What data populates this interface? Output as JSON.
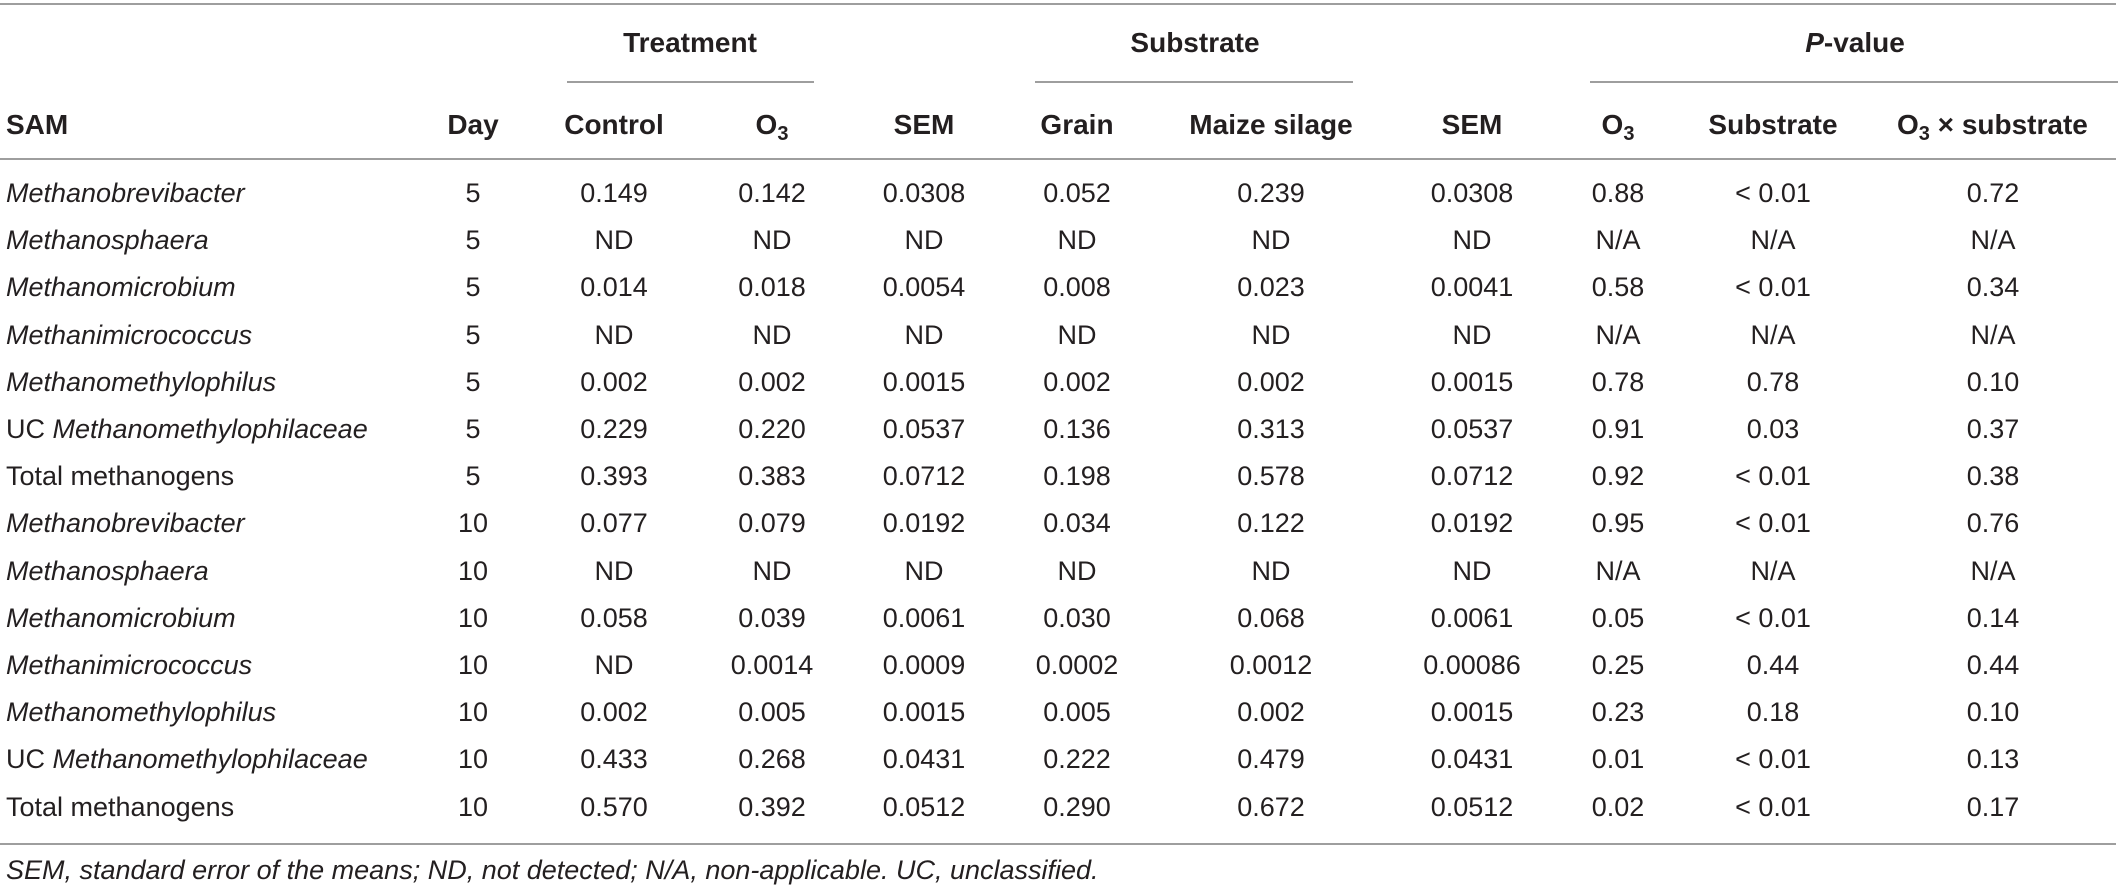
{
  "groups": {
    "treatment": "Treatment",
    "substrate": "Substrate",
    "pvalue_italic": "P",
    "pvalue_rest": "-value"
  },
  "headers": {
    "sam": "SAM",
    "day": "Day",
    "control": "Control",
    "o3_base": "O",
    "o3_sub": "3",
    "sem": "SEM",
    "grain": "Grain",
    "maize_silage": "Maize silage",
    "sem2": "SEM",
    "p_o3_base": "O",
    "p_o3_sub": "3",
    "substrate": "Substrate",
    "interaction_base": "O",
    "interaction_sub": "3",
    "interaction_rest": " × substrate"
  },
  "rows": [
    {
      "prefix": "",
      "name": "Methanobrevibacter",
      "day": "5",
      "control": "0.149",
      "o3": "0.142",
      "sem": "0.0308",
      "grain": "0.052",
      "maize": "0.239",
      "sem2": "0.0308",
      "p_o3": "0.88",
      "p_sub": "< 0.01",
      "p_int": "0.72"
    },
    {
      "prefix": "",
      "name": "Methanosphaera",
      "day": "5",
      "control": "ND",
      "o3": "ND",
      "sem": "ND",
      "grain": "ND",
      "maize": "ND",
      "sem2": "ND",
      "p_o3": "N/A",
      "p_sub": "N/A",
      "p_int": "N/A"
    },
    {
      "prefix": "",
      "name": "Methanomicrobium",
      "day": "5",
      "control": "0.014",
      "o3": "0.018",
      "sem": "0.0054",
      "grain": "0.008",
      "maize": "0.023",
      "sem2": "0.0041",
      "p_o3": "0.58",
      "p_sub": "< 0.01",
      "p_int": "0.34"
    },
    {
      "prefix": "",
      "name": "Methanimicrococcus",
      "day": "5",
      "control": "ND",
      "o3": "ND",
      "sem": "ND",
      "grain": "ND",
      "maize": "ND",
      "sem2": "ND",
      "p_o3": "N/A",
      "p_sub": "N/A",
      "p_int": "N/A"
    },
    {
      "prefix": "",
      "name": "Methanomethylophilus",
      "day": "5",
      "control": "0.002",
      "o3": "0.002",
      "sem": "0.0015",
      "grain": "0.002",
      "maize": "0.002",
      "sem2": "0.0015",
      "p_o3": "0.78",
      "p_sub": "0.78",
      "p_int": "0.10"
    },
    {
      "prefix": "UC ",
      "name": "Methanomethylophilaceae",
      "day": "5",
      "control": "0.229",
      "o3": "0.220",
      "sem": "0.0537",
      "grain": "0.136",
      "maize": "0.313",
      "sem2": "0.0537",
      "p_o3": "0.91",
      "p_sub": "0.03",
      "p_int": "0.37"
    },
    {
      "prefix": "Total methanogens",
      "name": "",
      "day": "5",
      "control": "0.393",
      "o3": "0.383",
      "sem": "0.0712",
      "grain": "0.198",
      "maize": "0.578",
      "sem2": "0.0712",
      "p_o3": "0.92",
      "p_sub": "< 0.01",
      "p_int": "0.38"
    },
    {
      "prefix": "",
      "name": "Methanobrevibacter",
      "day": "10",
      "control": "0.077",
      "o3": "0.079",
      "sem": "0.0192",
      "grain": "0.034",
      "maize": "0.122",
      "sem2": "0.0192",
      "p_o3": "0.95",
      "p_sub": "< 0.01",
      "p_int": "0.76"
    },
    {
      "prefix": "",
      "name": "Methanosphaera",
      "day": "10",
      "control": "ND",
      "o3": "ND",
      "sem": "ND",
      "grain": "ND",
      "maize": "ND",
      "sem2": "ND",
      "p_o3": "N/A",
      "p_sub": "N/A",
      "p_int": "N/A"
    },
    {
      "prefix": "",
      "name": "Methanomicrobium",
      "day": "10",
      "control": "0.058",
      "o3": "0.039",
      "sem": "0.0061",
      "grain": "0.030",
      "maize": "0.068",
      "sem2": "0.0061",
      "p_o3": "0.05",
      "p_sub": "< 0.01",
      "p_int": "0.14"
    },
    {
      "prefix": "",
      "name": "Methanimicrococcus",
      "day": "10",
      "control": "ND",
      "o3": "0.0014",
      "sem": "0.0009",
      "grain": "0.0002",
      "maize": "0.0012",
      "sem2": "0.00086",
      "p_o3": "0.25",
      "p_sub": "0.44",
      "p_int": "0.44"
    },
    {
      "prefix": "",
      "name": "Methanomethylophilus",
      "day": "10",
      "control": "0.002",
      "o3": "0.005",
      "sem": "0.0015",
      "grain": "0.005",
      "maize": "0.002",
      "sem2": "0.0015",
      "p_o3": "0.23",
      "p_sub": "0.18",
      "p_int": "0.10"
    },
    {
      "prefix": "UC ",
      "name": "Methanomethylophilaceae",
      "day": "10",
      "control": "0.433",
      "o3": "0.268",
      "sem": "0.0431",
      "grain": "0.222",
      "maize": "0.479",
      "sem2": "0.0431",
      "p_o3": "0.01",
      "p_sub": "< 0.01",
      "p_int": "0.13"
    },
    {
      "prefix": "Total methanogens",
      "name": "",
      "day": "10",
      "control": "0.570",
      "o3": "0.392",
      "sem": "0.0512",
      "grain": "0.290",
      "maize": "0.672",
      "sem2": "0.0512",
      "p_o3": "0.02",
      "p_sub": "< 0.01",
      "p_int": "0.17"
    }
  ],
  "footnote": "SEM, standard error of the means; ND, not detected; N/A, non-applicable. UC, unclassified."
}
